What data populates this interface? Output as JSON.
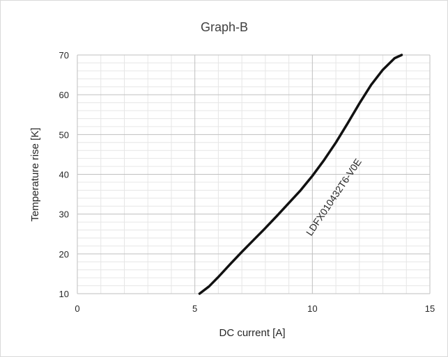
{
  "chart_data": {
    "type": "line",
    "title": "Graph-B",
    "xlabel": "DC current [A]",
    "ylabel": "Temperature rise [K]",
    "xlim": [
      0,
      15
    ],
    "ylim": [
      10,
      70
    ],
    "x_ticks": [
      0,
      5,
      10,
      15
    ],
    "y_ticks": [
      10,
      20,
      30,
      40,
      50,
      60,
      70
    ],
    "grid": true,
    "minor_grid": true,
    "legend": "none",
    "series": [
      {
        "name": "LDFX010432T6-V0E",
        "color": "#111111",
        "x": [
          5.2,
          5.6,
          6.0,
          6.5,
          7.0,
          7.5,
          8.0,
          8.5,
          9.0,
          9.5,
          10.0,
          10.5,
          11.0,
          11.5,
          12.0,
          12.5,
          13.0,
          13.5,
          13.8
        ],
        "y": [
          10.0,
          11.8,
          14.2,
          17.4,
          20.5,
          23.5,
          26.5,
          29.6,
          32.8,
          36.0,
          39.6,
          43.6,
          48.0,
          52.8,
          57.8,
          62.5,
          66.3,
          69.2,
          70.0
        ]
      }
    ]
  }
}
